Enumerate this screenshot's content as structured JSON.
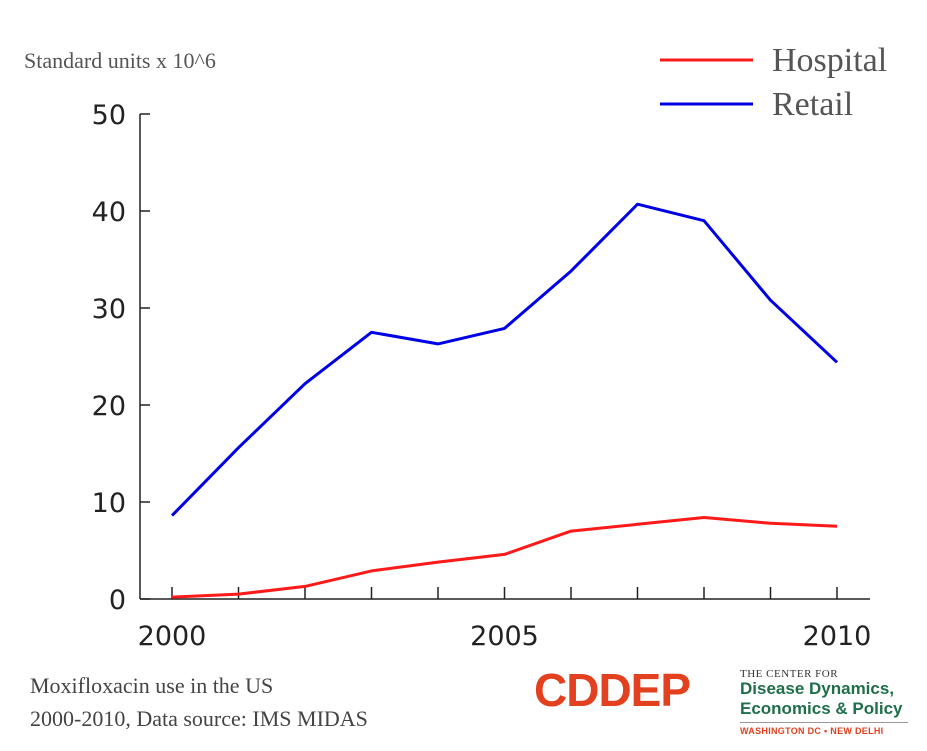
{
  "chart_data": {
    "type": "line",
    "title": "",
    "ylabel": "Standard units x 10^6",
    "xlabel": "",
    "xlim": [
      2000,
      2010
    ],
    "ylim": [
      0,
      50
    ],
    "x_ticks": [
      2000,
      2005,
      2010
    ],
    "y_ticks": [
      0,
      10,
      20,
      30,
      40,
      50
    ],
    "legend_position": "top-right",
    "x": [
      2000,
      2001,
      2002,
      2003,
      2004,
      2005,
      2006,
      2007,
      2008,
      2009,
      2010
    ],
    "series": [
      {
        "name": "Hospital",
        "color": "#ff1a1a",
        "values": [
          0.2,
          0.5,
          1.3,
          2.9,
          3.8,
          4.6,
          7.0,
          7.7,
          8.4,
          7.8,
          7.5
        ]
      },
      {
        "name": "Retail",
        "color": "#0000e6",
        "values": [
          8.6,
          15.6,
          22.2,
          27.5,
          26.3,
          27.9,
          33.8,
          40.7,
          39.0,
          30.8,
          24.4
        ]
      }
    ]
  },
  "caption": {
    "line1": "Moxifloxacin use in the US",
    "line2": "2000-2010, Data source: IMS MIDAS"
  },
  "logo": {
    "main": "CDDEP",
    "sub1": "THE CENTER FOR",
    "sub2a": "Disease Dynamics,",
    "sub2b": "Economics & Policy",
    "sub3": "WASHINGTON DC • NEW DELHI"
  }
}
